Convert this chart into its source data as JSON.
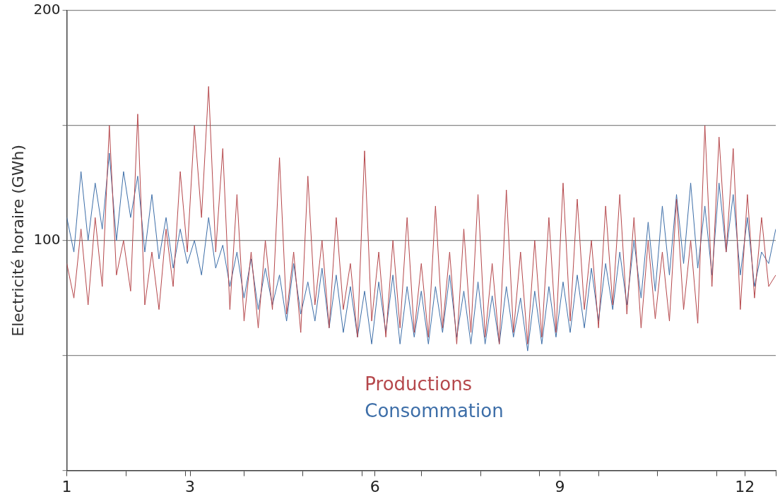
{
  "chart_data": {
    "type": "line",
    "ylabel": "Electricité horaire (GWh)",
    "xlim": [
      1,
      12.5
    ],
    "xticks": [
      1,
      {
        "value": 1.96,
        "label": null
      },
      {
        "value": 2.92,
        "label": null
      },
      3,
      {
        "value": 3.88,
        "label": null
      },
      {
        "value": 4.83,
        "label": null
      },
      {
        "value": 5.79,
        "label": null
      },
      6,
      {
        "value": 6.75,
        "label": null
      },
      {
        "value": 7.71,
        "label": null
      },
      {
        "value": 8.67,
        "label": null
      },
      9,
      {
        "value": 9.63,
        "label": null
      },
      {
        "value": 10.58,
        "label": null
      },
      {
        "value": 11.54,
        "label": null
      },
      12,
      {
        "value": 12.5,
        "label": null
      }
    ],
    "ylim": [
      0,
      200
    ],
    "yticks": [
      {
        "value": 0,
        "label": null
      },
      {
        "value": 50,
        "label": null
      },
      100,
      {
        "value": 150,
        "label": null
      },
      200
    ],
    "grid": "y",
    "legend": "bottom",
    "marker": "none",
    "x": [
      1,
      1.115,
      1.23,
      1.345,
      1.46,
      1.575,
      1.69,
      1.805,
      1.92,
      2.035,
      2.15,
      2.265,
      2.38,
      2.495,
      2.61,
      2.725,
      2.84,
      2.955,
      3.07,
      3.185,
      3.3,
      3.415,
      3.53,
      3.645,
      3.76,
      3.875,
      3.99,
      4.105,
      4.22,
      4.335,
      4.45,
      4.565,
      4.68,
      4.795,
      4.91,
      5.025,
      5.14,
      5.255,
      5.37,
      5.485,
      5.6,
      5.715,
      5.83,
      5.945,
      6.06,
      6.175,
      6.29,
      6.405,
      6.52,
      6.635,
      6.75,
      6.865,
      6.98,
      7.095,
      7.21,
      7.325,
      7.44,
      7.555,
      7.67,
      7.785,
      7.9,
      8.015,
      8.13,
      8.245,
      8.36,
      8.475,
      8.59,
      8.705,
      8.82,
      8.935,
      9.05,
      9.165,
      9.28,
      9.395,
      9.51,
      9.625,
      9.74,
      9.855,
      9.97,
      10.085,
      10.2,
      10.315,
      10.43,
      10.545,
      10.66,
      10.775,
      10.89,
      11.005,
      11.12,
      11.235,
      11.35,
      11.465,
      11.58,
      11.695,
      11.81,
      11.925,
      12.04,
      12.155,
      12.27,
      12.385,
      12.5
    ],
    "series": [
      {
        "name": "Productions",
        "color": "#b5474b",
        "values": [
          90,
          75,
          105,
          72,
          110,
          80,
          150,
          85,
          100,
          78,
          155,
          72,
          95,
          70,
          105,
          80,
          130,
          95,
          150,
          110,
          167,
          95,
          140,
          70,
          120,
          65,
          95,
          62,
          100,
          70,
          136,
          68,
          95,
          60,
          128,
          72,
          100,
          62,
          110,
          70,
          90,
          58,
          139,
          65,
          95,
          58,
          100,
          62,
          110,
          60,
          90,
          58,
          115,
          62,
          95,
          55,
          105,
          60,
          120,
          58,
          90,
          55,
          122,
          60,
          95,
          55,
          100,
          58,
          110,
          60,
          125,
          65,
          118,
          70,
          100,
          62,
          115,
          72,
          120,
          68,
          110,
          62,
          100,
          66,
          95,
          65,
          118,
          70,
          100,
          64,
          150,
          80,
          145,
          95,
          140,
          70,
          120,
          75,
          110,
          80,
          85
        ]
      },
      {
        "name": "Consommation",
        "color": "#3d6ea8",
        "values": [
          110,
          95,
          130,
          100,
          125,
          105,
          138,
          100,
          130,
          110,
          128,
          95,
          120,
          92,
          110,
          88,
          105,
          90,
          100,
          85,
          110,
          88,
          98,
          80,
          95,
          75,
          92,
          70,
          88,
          72,
          85,
          65,
          90,
          68,
          82,
          65,
          88,
          62,
          85,
          60,
          80,
          58,
          78,
          55,
          82,
          60,
          85,
          55,
          80,
          58,
          78,
          55,
          80,
          60,
          85,
          58,
          78,
          55,
          82,
          55,
          76,
          55,
          80,
          58,
          75,
          52,
          78,
          55,
          80,
          58,
          82,
          60,
          85,
          62,
          88,
          65,
          90,
          70,
          95,
          72,
          100,
          75,
          108,
          78,
          115,
          85,
          120,
          90,
          125,
          88,
          115,
          85,
          125,
          95,
          120,
          85,
          110,
          80,
          95,
          90,
          105
        ]
      }
    ]
  }
}
